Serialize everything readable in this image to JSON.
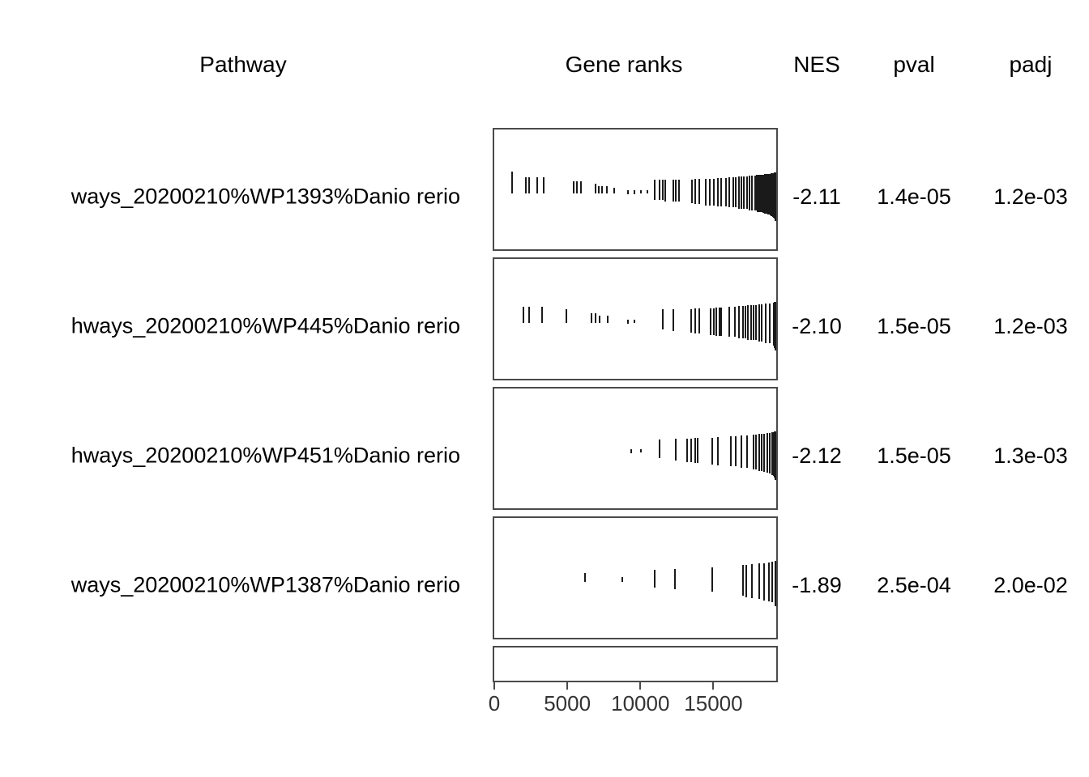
{
  "chart_data": {
    "type": "table",
    "subtype": "gsea-table",
    "columns": [
      "Pathway",
      "Gene ranks",
      "NES",
      "pval",
      "padj"
    ],
    "x_axis": {
      "label": "",
      "ticks": [
        0,
        5000,
        10000,
        15000
      ],
      "tick_labels": [
        "0",
        "5000",
        "10000",
        "15000"
      ],
      "range": [
        0,
        19300
      ]
    },
    "rows": [
      {
        "pathway": "ways_20200210%WP1393%Danio rerio",
        "nes": "-2.11",
        "pval": "1.4e-05",
        "padj": "1.2e-03",
        "ticks_rank_top_height": [
          [
            1150,
            52,
            27
          ],
          [
            2130,
            59,
            20
          ],
          [
            2350,
            59,
            20
          ],
          [
            2860,
            59,
            20
          ],
          [
            3350,
            59,
            20
          ],
          [
            5390,
            64,
            15
          ],
          [
            5600,
            64,
            15
          ],
          [
            5880,
            64,
            15
          ],
          [
            6880,
            67,
            12
          ],
          [
            7100,
            70,
            9
          ],
          [
            7315,
            70,
            9
          ],
          [
            7630,
            70,
            9
          ],
          [
            8170,
            72,
            7
          ],
          [
            9080,
            75,
            5
          ],
          [
            9560,
            75,
            5
          ],
          [
            10000,
            75,
            4
          ],
          [
            10450,
            75,
            4
          ],
          [
            10940,
            62,
            25
          ],
          [
            11280,
            62,
            25
          ],
          [
            11500,
            62,
            25
          ],
          [
            11660,
            62,
            27
          ],
          [
            12210,
            62,
            27
          ],
          [
            12380,
            62,
            27
          ],
          [
            12590,
            62,
            27
          ],
          [
            13470,
            62,
            29
          ],
          [
            13690,
            61,
            31
          ],
          [
            13960,
            61,
            31
          ],
          [
            14400,
            61,
            33
          ],
          [
            14680,
            61,
            33
          ],
          [
            14950,
            61,
            33
          ],
          [
            15230,
            60,
            35
          ],
          [
            15500,
            60,
            35
          ],
          [
            15780,
            60,
            35
          ],
          [
            16050,
            59,
            37
          ],
          [
            16320,
            59,
            37
          ],
          [
            16490,
            59,
            37
          ],
          [
            16710,
            58,
            40
          ],
          [
            16870,
            58,
            40
          ],
          [
            17040,
            58,
            40
          ],
          [
            17260,
            58,
            40
          ],
          [
            17420,
            57,
            43
          ],
          [
            17590,
            57,
            43
          ],
          [
            17810,
            57,
            43
          ],
          [
            17900,
            56,
            44
          ],
          [
            17970,
            56,
            46
          ],
          [
            18080,
            56,
            46
          ],
          [
            18170,
            56,
            46
          ],
          [
            18250,
            56,
            46
          ],
          [
            18330,
            56,
            47
          ],
          [
            18400,
            56,
            47
          ],
          [
            18460,
            55,
            49
          ],
          [
            18560,
            55,
            49
          ],
          [
            18630,
            55,
            49
          ],
          [
            18700,
            55,
            50
          ],
          [
            18790,
            55,
            50
          ],
          [
            18850,
            55,
            51
          ],
          [
            18900,
            54,
            53
          ],
          [
            18950,
            54,
            53
          ],
          [
            19010,
            54,
            54
          ],
          [
            19060,
            54,
            54
          ],
          [
            19100,
            54,
            55
          ],
          [
            19150,
            53,
            57
          ],
          [
            19190,
            53,
            57
          ],
          [
            19230,
            53,
            58
          ],
          [
            19270,
            53,
            58
          ],
          [
            19310,
            53,
            59
          ],
          [
            19340,
            53,
            60
          ]
        ]
      },
      {
        "pathway": "hways_20200210%WP445%Danio rerio",
        "nes": "-2.10",
        "pval": "1.5e-05",
        "padj": "1.2e-03",
        "ticks_rank_top_height": [
          [
            1920,
            59,
            20
          ],
          [
            2310,
            59,
            20
          ],
          [
            3240,
            59,
            20
          ],
          [
            4890,
            62,
            17
          ],
          [
            6600,
            67,
            12
          ],
          [
            6880,
            67,
            12
          ],
          [
            7150,
            70,
            9
          ],
          [
            7700,
            70,
            9
          ],
          [
            9070,
            75,
            5
          ],
          [
            9560,
            75,
            4
          ],
          [
            11490,
            62,
            25
          ],
          [
            12210,
            62,
            27
          ],
          [
            13400,
            62,
            29
          ],
          [
            13690,
            61,
            31
          ],
          [
            13960,
            61,
            31
          ],
          [
            14780,
            61,
            33
          ],
          [
            14950,
            61,
            33
          ],
          [
            15120,
            60,
            35
          ],
          [
            15340,
            60,
            35
          ],
          [
            15500,
            60,
            35
          ],
          [
            16050,
            59,
            37
          ],
          [
            16430,
            59,
            37
          ],
          [
            16710,
            58,
            40
          ],
          [
            16980,
            58,
            40
          ],
          [
            17150,
            58,
            40
          ],
          [
            17310,
            57,
            43
          ],
          [
            17530,
            57,
            43
          ],
          [
            17700,
            57,
            43
          ],
          [
            17860,
            57,
            43
          ],
          [
            18080,
            56,
            46
          ],
          [
            18250,
            56,
            46
          ],
          [
            18510,
            55,
            49
          ],
          [
            18790,
            55,
            49
          ],
          [
            19100,
            54,
            53
          ],
          [
            19160,
            53,
            57
          ],
          [
            19220,
            53,
            58
          ],
          [
            19280,
            53,
            59
          ],
          [
            19330,
            53,
            60
          ],
          [
            19380,
            53,
            60
          ]
        ]
      },
      {
        "pathway": "hways_20200210%WP451%Danio rerio",
        "nes": "-2.12",
        "pval": "1.5e-05",
        "padj": "1.3e-03",
        "ticks_rank_top_height": [
          [
            9290,
            75,
            5
          ],
          [
            10000,
            75,
            4
          ],
          [
            11280,
            63,
            23
          ],
          [
            12380,
            62,
            27
          ],
          [
            13120,
            62,
            29
          ],
          [
            13400,
            62,
            29
          ],
          [
            13690,
            61,
            31
          ],
          [
            13850,
            61,
            31
          ],
          [
            14840,
            61,
            33
          ],
          [
            15230,
            60,
            35
          ],
          [
            16150,
            59,
            37
          ],
          [
            16490,
            59,
            37
          ],
          [
            16870,
            58,
            40
          ],
          [
            17260,
            58,
            40
          ],
          [
            17700,
            57,
            43
          ],
          [
            17860,
            57,
            43
          ],
          [
            18080,
            56,
            46
          ],
          [
            18250,
            56,
            46
          ],
          [
            18420,
            56,
            47
          ],
          [
            18620,
            55,
            49
          ],
          [
            18790,
            55,
            50
          ],
          [
            18950,
            54,
            53
          ],
          [
            19070,
            54,
            54
          ],
          [
            19160,
            53,
            57
          ],
          [
            19230,
            53,
            58
          ],
          [
            19300,
            53,
            59
          ],
          [
            19360,
            53,
            60
          ]
        ]
      },
      {
        "pathway": "ways_20200210%WP1387%Danio rerio",
        "nes": "-1.89",
        "pval": "2.5e-04",
        "padj": "2.0e-02",
        "ticks_rank_top_height": [
          [
            6160,
            68,
            11
          ],
          [
            8720,
            73,
            6
          ],
          [
            10920,
            64,
            22
          ],
          [
            12300,
            63,
            25
          ],
          [
            14840,
            61,
            30
          ],
          [
            16980,
            58,
            38
          ],
          [
            17200,
            58,
            40
          ],
          [
            17590,
            57,
            42
          ],
          [
            18080,
            56,
            44
          ],
          [
            18420,
            56,
            46
          ],
          [
            18760,
            55,
            48
          ],
          [
            18950,
            54,
            50
          ],
          [
            19170,
            54,
            53
          ],
          [
            19340,
            53,
            56
          ]
        ]
      }
    ]
  },
  "colors": {
    "background": "#ffffff",
    "text": "#000000",
    "panel_border": "#4a4a4a",
    "tick_mark": "#1a1a1a",
    "axis_label": "#333333"
  }
}
